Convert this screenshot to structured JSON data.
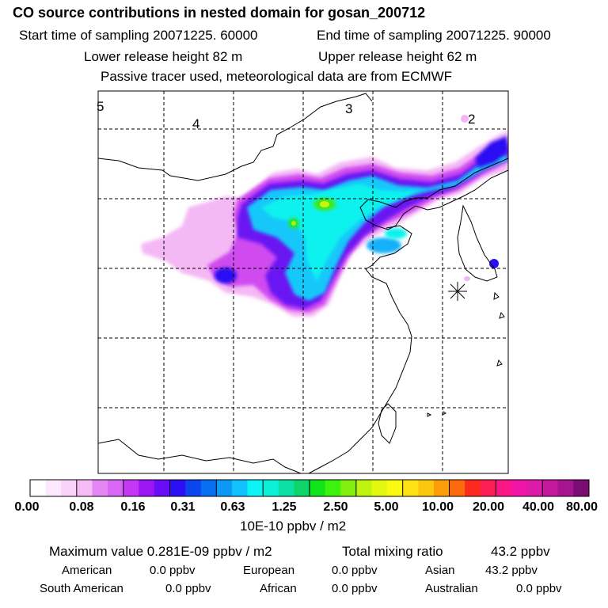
{
  "header": {
    "title": "CO  source contributions in nested domain for gosan_200712",
    "start_time": "Start time of sampling 20071225. 60000",
    "end_time": "End time of sampling 20071225. 90000",
    "lower_height": "Lower release height   82 m",
    "upper_height": "Upper release height   62 m",
    "tracer_note": "Passive tracer used, meteorological data are from ECMWF"
  },
  "map": {
    "grid_labels": [
      "5",
      "4",
      "3",
      "2"
    ],
    "receptor_marker": "star-icon"
  },
  "colorbar": {
    "colors": [
      "#ffffff",
      "#fde8fd",
      "#fad2fa",
      "#f7bbf7",
      "#e486f4",
      "#d966f6",
      "#c437f5",
      "#9a16f2",
      "#6a0cf5",
      "#2a10f2",
      "#0c45ee",
      "#0a6ef2",
      "#0e98f6",
      "#11c1fb",
      "#0df4f6",
      "#0bf0d6",
      "#0ddfa6",
      "#0fd46a",
      "#12e41c",
      "#3cf20f",
      "#82ee10",
      "#bdf30f",
      "#e4f70f",
      "#fbf811",
      "#fde114",
      "#fcc80f",
      "#fc9e0a",
      "#fc6a0c",
      "#fb2a1f",
      "#fa1e55",
      "#fb1788",
      "#f014a8",
      "#dc1ba8",
      "#c3179e",
      "#a61590",
      "#7a0c72"
    ],
    "tick_labels": [
      "0.00",
      "0.08",
      "0.16",
      "0.31",
      "0.63",
      "1.25",
      "2.50",
      "5.00",
      "10.00",
      "20.00",
      "40.00",
      "80.00"
    ],
    "units": "10E-10 ppbv / m2"
  },
  "stats": {
    "max_label": "Maximum value  0.281E-09 ppbv / m2",
    "total_label": "Total mixing ratio",
    "total_value": "43.2 ppbv",
    "regions": [
      {
        "name": "American",
        "value": "0.0 ppbv"
      },
      {
        "name": "European",
        "value": "0.0 ppbv"
      },
      {
        "name": "Asian",
        "value": "43.2 ppbv"
      },
      {
        "name": "South American",
        "value": "0.0 ppbv"
      },
      {
        "name": "African",
        "value": "0.0 ppbv"
      },
      {
        "name": "Australian",
        "value": "0.0 ppbv"
      }
    ]
  }
}
